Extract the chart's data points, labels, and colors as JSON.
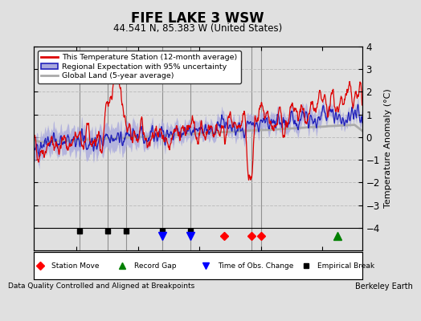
{
  "title": "FIFE LAKE 3 WSW",
  "subtitle": "44.541 N, 85.383 W (United States)",
  "ylabel": "Temperature Anomaly (°C)",
  "xlabel_note": "Data Quality Controlled and Aligned at Breakpoints",
  "credit": "Berkeley Earth",
  "year_start": 1906,
  "year_end": 2013,
  "ylim": [
    -5,
    4
  ],
  "yticks": [
    -4,
    -3,
    -2,
    -1,
    0,
    1,
    2,
    3,
    4
  ],
  "xticks": [
    1920,
    1940,
    1960,
    1980,
    2000
  ],
  "bg_color": "#e0e0e0",
  "plot_bg": "#e0e0e0",
  "red_color": "#dd0000",
  "blue_color": "#2222bb",
  "blue_fill": "#aaaadd",
  "gray_color": "#aaaaaa",
  "vline_color": "#888888",
  "vline_years": [
    1921,
    1930,
    1936,
    1948,
    1957,
    1977,
    1980
  ],
  "station_move_years": [
    1968,
    1977,
    1980
  ],
  "record_gap_years": [
    2005
  ],
  "obs_change_years": [
    1948,
    1957
  ],
  "empirical_break_years": [
    1921,
    1930,
    1936,
    1948,
    1957
  ]
}
